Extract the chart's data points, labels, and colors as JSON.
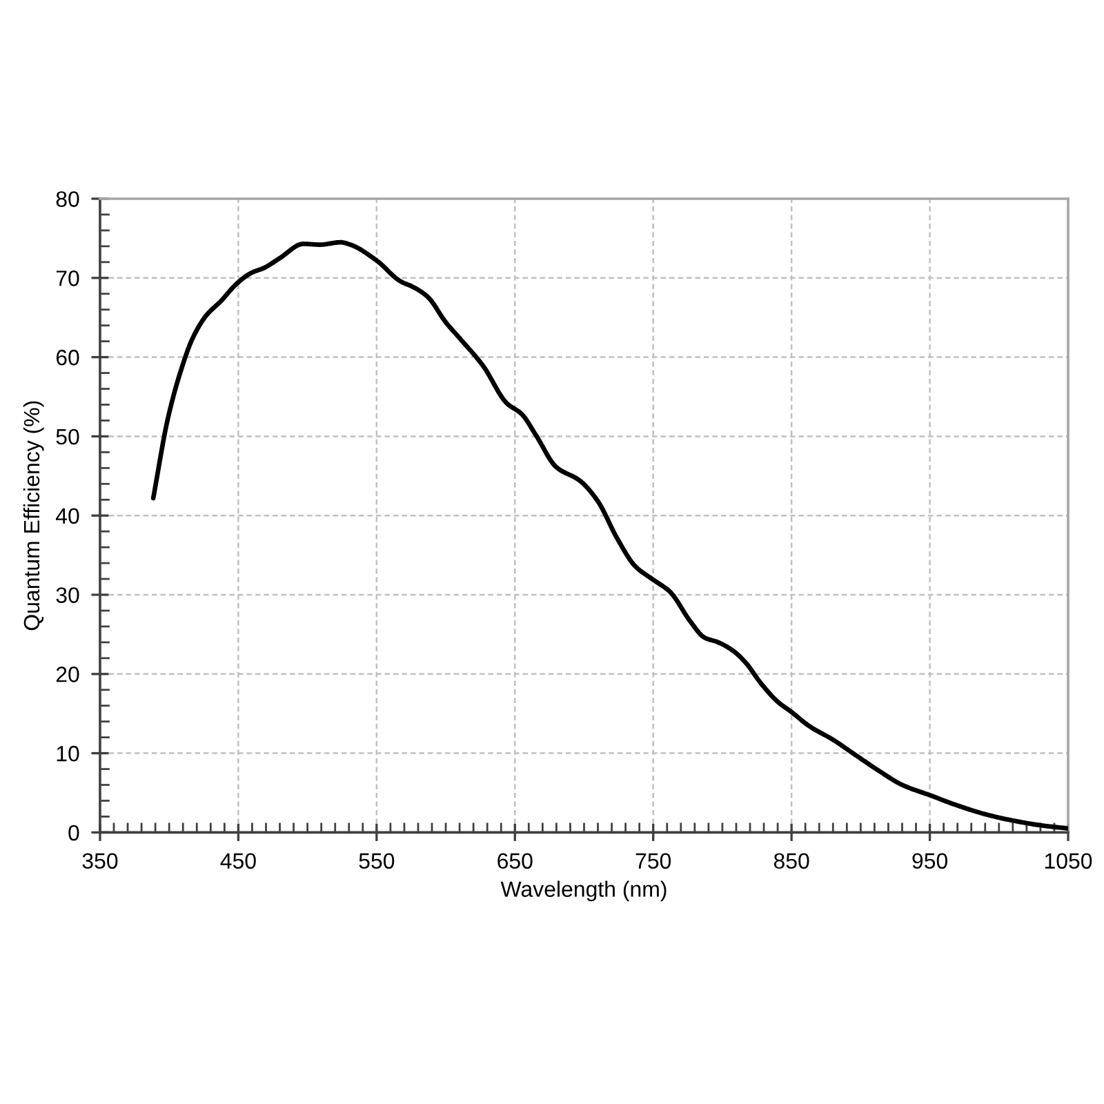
{
  "chart_data": {
    "type": "line",
    "xlabel": "Wavelength (nm)",
    "ylabel": "Quantum Efficiency (%)",
    "x": [
      388.5,
      399,
      409,
      417,
      427,
      437,
      449,
      459,
      469,
      480,
      497,
      509,
      524,
      531,
      550,
      567,
      577,
      587,
      600,
      610,
      627,
      644,
      655,
      665,
      680,
      697,
      710,
      724,
      737,
      750,
      762,
      777,
      787,
      797,
      808,
      817,
      828,
      840,
      850,
      863,
      880,
      896,
      913,
      930,
      950,
      970,
      990,
      1010,
      1030,
      1050
    ],
    "series": [
      {
        "color": "#000000",
        "values": [
          42.2,
          52.2,
          58.6,
          62.4,
          65.3,
          67.0,
          69.3,
          70.6,
          71.3,
          72.5,
          74.3,
          74.2,
          74.5,
          74.2,
          72.2,
          69.6,
          68.8,
          67.6,
          64.4,
          62.4,
          58.9,
          54.2,
          52.8,
          50.2,
          46.1,
          44.4,
          41.8,
          37.1,
          33.6,
          31.9,
          30.4,
          26.6,
          24.6,
          24.0,
          22.9,
          21.4,
          18.8,
          16.5,
          15.2,
          13.4,
          11.7,
          9.8,
          7.8,
          6.0,
          4.7,
          3.4,
          2.3,
          1.5,
          0.9,
          0.5
        ]
      }
    ],
    "xlim": [
      350,
      1050
    ],
    "ylim": [
      0,
      80
    ],
    "xticks": [
      350,
      {
        "value": 360,
        "label": null
      },
      {
        "value": 370,
        "label": null
      },
      {
        "value": 380,
        "label": null
      },
      {
        "value": 390,
        "label": null
      },
      {
        "value": 400,
        "label": null
      },
      {
        "value": 410,
        "label": null
      },
      {
        "value": 420,
        "label": null
      },
      {
        "value": 430,
        "label": null
      },
      {
        "value": 440,
        "label": null
      },
      450,
      {
        "value": 460,
        "label": null
      },
      {
        "value": 470,
        "label": null
      },
      {
        "value": 480,
        "label": null
      },
      {
        "value": 490,
        "label": null
      },
      {
        "value": 500,
        "label": null
      },
      {
        "value": 510,
        "label": null
      },
      {
        "value": 520,
        "label": null
      },
      {
        "value": 530,
        "label": null
      },
      {
        "value": 540,
        "label": null
      },
      550,
      {
        "value": 560,
        "label": null
      },
      {
        "value": 570,
        "label": null
      },
      {
        "value": 580,
        "label": null
      },
      {
        "value": 590,
        "label": null
      },
      {
        "value": 600,
        "label": null
      },
      {
        "value": 610,
        "label": null
      },
      {
        "value": 620,
        "label": null
      },
      {
        "value": 630,
        "label": null
      },
      {
        "value": 640,
        "label": null
      },
      650,
      {
        "value": 660,
        "label": null
      },
      {
        "value": 670,
        "label": null
      },
      {
        "value": 680,
        "label": null
      },
      {
        "value": 690,
        "label": null
      },
      {
        "value": 700,
        "label": null
      },
      {
        "value": 710,
        "label": null
      },
      {
        "value": 720,
        "label": null
      },
      {
        "value": 730,
        "label": null
      },
      {
        "value": 740,
        "label": null
      },
      750,
      {
        "value": 760,
        "label": null
      },
      {
        "value": 770,
        "label": null
      },
      {
        "value": 780,
        "label": null
      },
      {
        "value": 790,
        "label": null
      },
      {
        "value": 800,
        "label": null
      },
      {
        "value": 810,
        "label": null
      },
      {
        "value": 820,
        "label": null
      },
      {
        "value": 830,
        "label": null
      },
      {
        "value": 840,
        "label": null
      },
      850,
      {
        "value": 860,
        "label": null
      },
      {
        "value": 870,
        "label": null
      },
      {
        "value": 880,
        "label": null
      },
      {
        "value": 890,
        "label": null
      },
      {
        "value": 900,
        "label": null
      },
      {
        "value": 910,
        "label": null
      },
      {
        "value": 920,
        "label": null
      },
      {
        "value": 930,
        "label": null
      },
      {
        "value": 940,
        "label": null
      },
      950,
      {
        "value": 960,
        "label": null
      },
      {
        "value": 970,
        "label": null
      },
      {
        "value": 980,
        "label": null
      },
      {
        "value": 990,
        "label": null
      },
      {
        "value": 1000,
        "label": null
      },
      {
        "value": 1010,
        "label": null
      },
      {
        "value": 1020,
        "label": null
      },
      {
        "value": 1030,
        "label": null
      },
      {
        "value": 1040,
        "label": null
      },
      1050
    ],
    "yticks": [
      0,
      {
        "value": 2,
        "label": null
      },
      {
        "value": 4,
        "label": null
      },
      {
        "value": 6,
        "label": null
      },
      {
        "value": 8,
        "label": null
      },
      10,
      {
        "value": 12,
        "label": null
      },
      {
        "value": 14,
        "label": null
      },
      {
        "value": 16,
        "label": null
      },
      {
        "value": 18,
        "label": null
      },
      20,
      {
        "value": 22,
        "label": null
      },
      {
        "value": 24,
        "label": null
      },
      {
        "value": 26,
        "label": null
      },
      {
        "value": 28,
        "label": null
      },
      30,
      {
        "value": 32,
        "label": null
      },
      {
        "value": 34,
        "label": null
      },
      {
        "value": 36,
        "label": null
      },
      {
        "value": 38,
        "label": null
      },
      40,
      {
        "value": 42,
        "label": null
      },
      {
        "value": 44,
        "label": null
      },
      {
        "value": 46,
        "label": null
      },
      {
        "value": 48,
        "label": null
      },
      50,
      {
        "value": 52,
        "label": null
      },
      {
        "value": 54,
        "label": null
      },
      {
        "value": 56,
        "label": null
      },
      {
        "value": 58,
        "label": null
      },
      60,
      {
        "value": 62,
        "label": null
      },
      {
        "value": 64,
        "label": null
      },
      {
        "value": 66,
        "label": null
      },
      {
        "value": 68,
        "label": null
      },
      70,
      {
        "value": 72,
        "label": null
      },
      {
        "value": 74,
        "label": null
      },
      {
        "value": 76,
        "label": null
      },
      {
        "value": 78,
        "label": null
      },
      80
    ],
    "grid": true,
    "line_style": "solid"
  }
}
